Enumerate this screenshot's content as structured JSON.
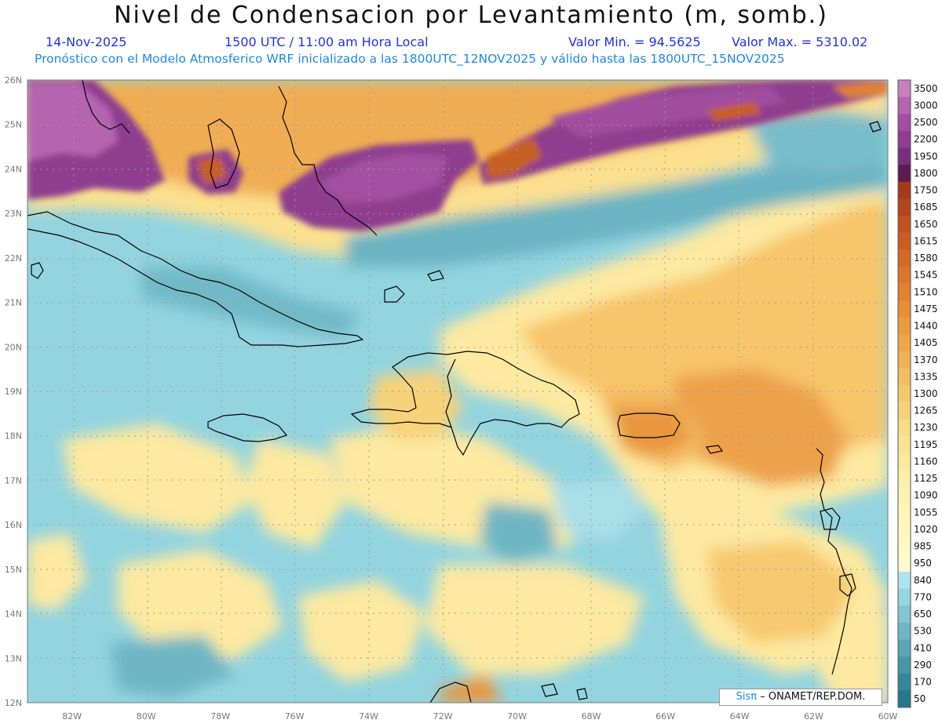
{
  "title": "Nivel de Condensacion por Levantamiento (m, somb.)",
  "date": "14-Nov-2025",
  "time": "1500 UTC / 11:00 am Hora Local",
  "min_label": "Valor Min. = 94.5625",
  "max_label": "Valor Max. = 5310.02",
  "forecast_info": "Pronóstico con el Modelo Atmosferico WRF inicializado a las 1800UTC_12NOV2025 y válido hasta las  1800UTC_15NOV2025",
  "credit": {
    "logo": "Sisπ",
    "text": "– ONAMET/REP.DOM."
  },
  "map": {
    "lat_labels": [
      "26N",
      "25N",
      "24N",
      "23N",
      "22N",
      "21N",
      "20N",
      "19N",
      "18N",
      "17N",
      "16N",
      "15N",
      "14N",
      "13N",
      "12N"
    ],
    "lon_labels": [
      "82W",
      "80W",
      "78W",
      "76W",
      "74W",
      "72W",
      "70W",
      "68W",
      "66W",
      "64W",
      "62W",
      "60W"
    ],
    "lon_range": [
      -83.2,
      -60
    ],
    "lat_range": [
      12,
      26
    ]
  },
  "colorbar": {
    "labels": [
      "3500",
      "3000",
      "2500",
      "2200",
      "1950",
      "1800",
      "1750",
      "1685",
      "1650",
      "1615",
      "1580",
      "1545",
      "1510",
      "1475",
      "1440",
      "1405",
      "1370",
      "1335",
      "1300",
      "1265",
      "1230",
      "1195",
      "1160",
      "1125",
      "1090",
      "1055",
      "1020",
      "985",
      "950",
      "840",
      "770",
      "650",
      "530",
      "410",
      "290",
      "170",
      "50"
    ],
    "colors": [
      "#c77fc0",
      "#b565b0",
      "#a04ea0",
      "#8e3d8f",
      "#7a2d7e",
      "#5c1a52",
      "#a33a1c",
      "#b2461e",
      "#be5220",
      "#c85e24",
      "#d26a28",
      "#da762c",
      "#e08230",
      "#e68e38",
      "#ea9a40",
      "#eea64a",
      "#f1b256",
      "#f4bd62",
      "#f6c86e",
      "#f8d27a",
      "#fadb86",
      "#fbe392",
      "#fce99e",
      "#fdeea8",
      "#fef2b0",
      "#fef5b8",
      "#fff7bf",
      "#fff9c6",
      "#fffacd",
      "#aee4ee",
      "#96d6e0",
      "#82c6d2",
      "#6eb6c4",
      "#5aa6b6",
      "#4896a8",
      "#36869a",
      "#27768c"
    ]
  },
  "regions": [
    {
      "name": "Cuba"
    },
    {
      "name": "Jamaica"
    },
    {
      "name": "Hispaniola"
    },
    {
      "name": "Puerto Rico"
    }
  ]
}
